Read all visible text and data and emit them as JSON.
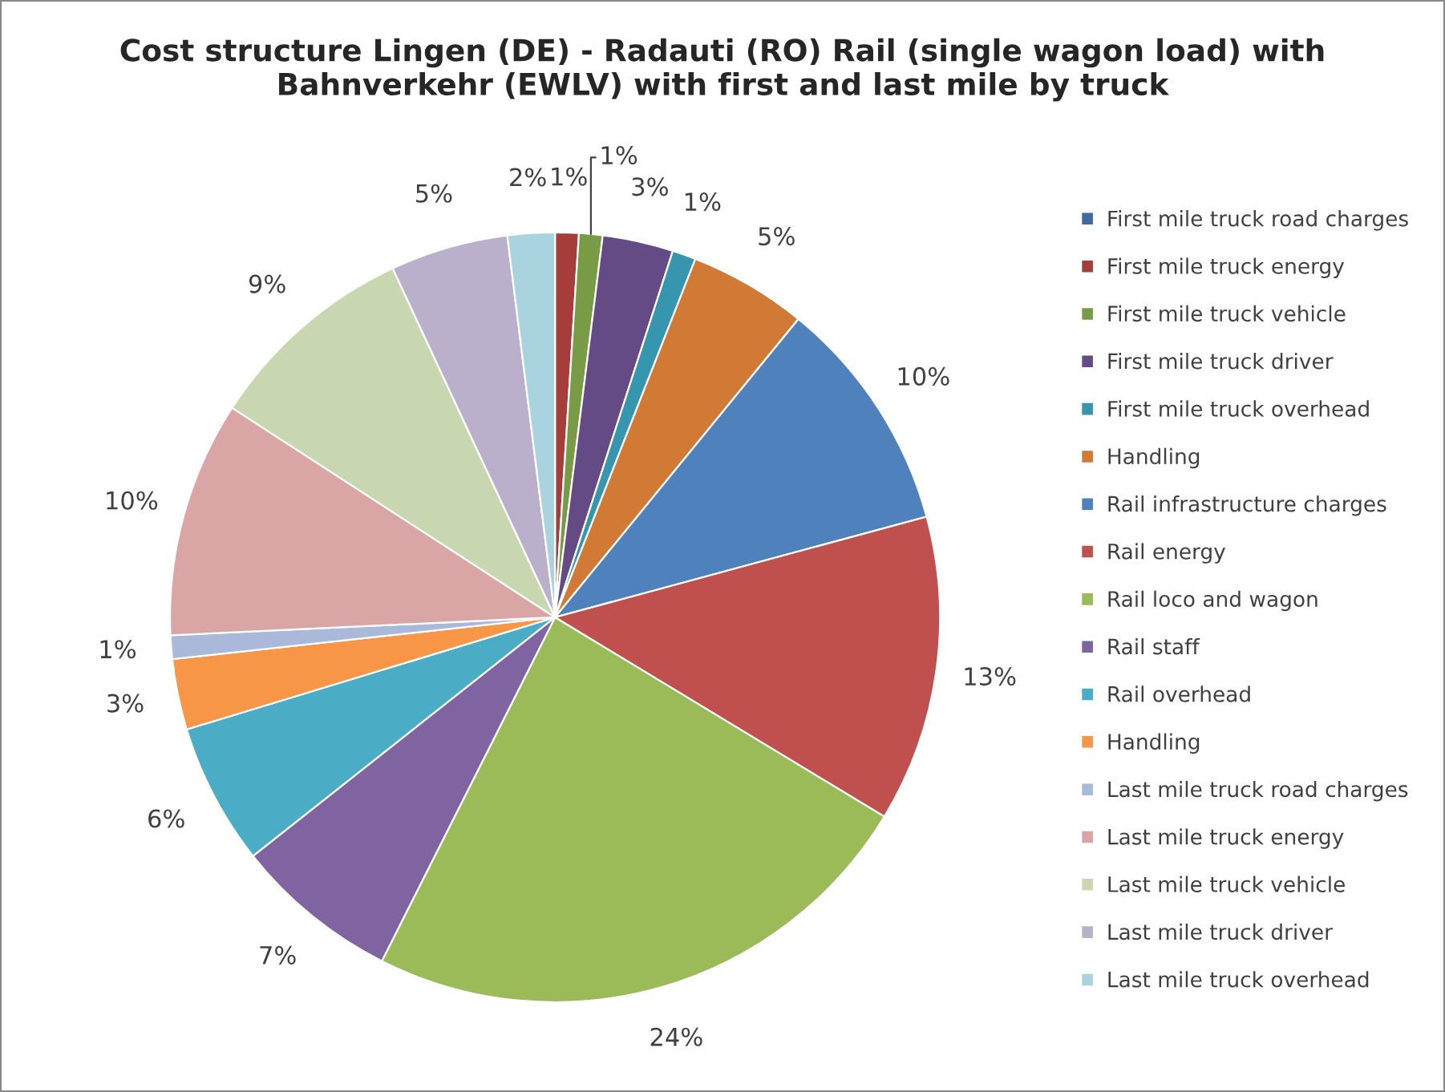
{
  "chart_data": {
    "type": "pie",
    "title": "Cost structure Lingen (DE) - Radauti (RO) Rail (single wagon load) with\nBahnverkehr (EWLV) with first and last mile by truck",
    "categories": [
      "First mile truck road charges",
      "First mile truck energy",
      "First mile truck vehicle",
      "First mile truck driver",
      "First mile truck overhead",
      "Handling",
      "Rail infrastructure charges",
      "Rail energy",
      "Rail loco and wagon",
      "Rail staff",
      "Rail overhead",
      "Handling",
      "Last mile truck road charges",
      "Last mile truck energy",
      "Last mile truck vehicle",
      "Last mile truck driver",
      "Last mile truck overhead"
    ],
    "values": [
      0,
      1,
      1,
      3,
      1,
      5,
      10,
      13,
      24,
      7,
      6,
      3,
      1,
      10,
      9,
      5,
      2
    ],
    "value_labels": [
      null,
      "1%",
      "1%",
      "3%",
      "1%",
      "5%",
      "10%",
      "13%",
      "24%",
      "7%",
      "6%",
      "3%",
      "1%",
      "10%",
      "9%",
      "5%",
      "2%"
    ],
    "colors": [
      "#3d6aa5",
      "#a63d3b",
      "#7a9b45",
      "#654b85",
      "#3596ae",
      "#d07a36",
      "#4f81bd",
      "#c0504d",
      "#9bbb59",
      "#8064a2",
      "#4bacc6",
      "#f79646",
      "#aab9d9",
      "#d9a6a5",
      "#c9d7b0",
      "#bab0cc",
      "#a9d3df"
    ],
    "legend": "right"
  }
}
